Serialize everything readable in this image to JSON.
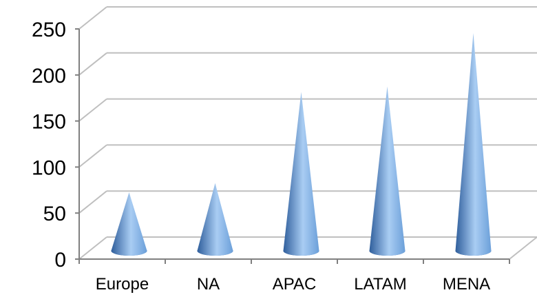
{
  "chart_data": {
    "type": "bar",
    "shape": "cone",
    "three_d": true,
    "categories": [
      "Europe",
      "NA",
      "APAC",
      "LATAM",
      "MENA"
    ],
    "values": [
      68,
      78,
      177,
      183,
      241
    ],
    "ylim": [
      0,
      250
    ],
    "yticks": [
      0,
      50,
      100,
      150,
      200,
      250
    ],
    "grid": true,
    "legend": "none"
  },
  "colors": {
    "cone_light": "#a9cdf3",
    "cone_mid": "#6b9fd9",
    "cone_dark": "#2f5e9c",
    "grid": "#bfbfbf"
  }
}
